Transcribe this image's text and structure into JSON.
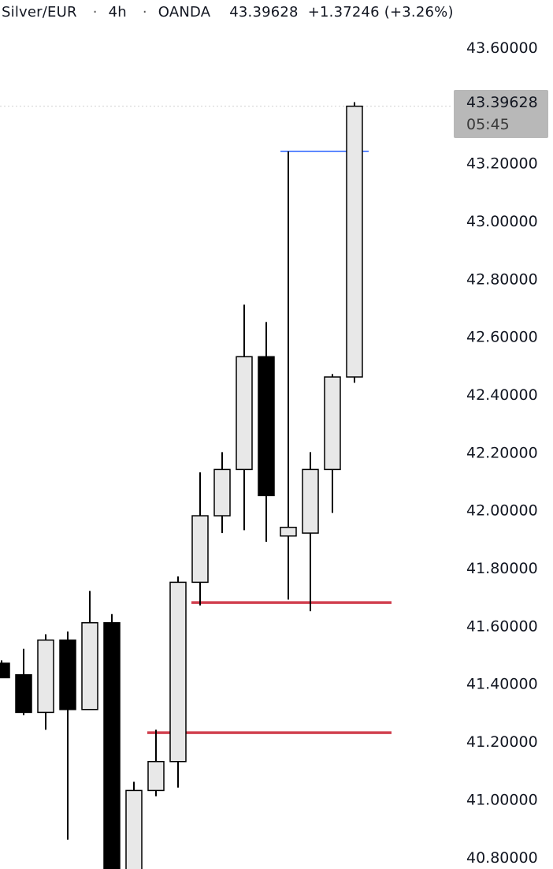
{
  "header": {
    "symbol": "Silver/EUR",
    "interval": "4h",
    "source": "OANDA",
    "last": "43.39628",
    "change": "+1.37246 (+3.26%)"
  },
  "last_tag": {
    "price": "43.39628",
    "countdown": "05:45"
  },
  "colors": {
    "up_fill": "#e8e8e8",
    "down_fill": "#000000",
    "outline": "#000000",
    "red_line": "#d1404f",
    "blue_line": "#2962ff",
    "tag_bg": "#b8b8b8"
  },
  "chart_data": {
    "type": "candlestick",
    "y_axis": {
      "side": "right",
      "ylim": [
        40.75,
        43.65
      ],
      "ticks": [
        "43.60000",
        "43.20000",
        "43.00000",
        "42.80000",
        "42.60000",
        "42.40000",
        "42.20000",
        "42.00000",
        "41.80000",
        "41.60000",
        "41.40000",
        "41.20000",
        "41.00000",
        "40.80000"
      ],
      "tick_values": [
        43.6,
        43.2,
        43.0,
        42.8,
        42.6,
        42.4,
        42.2,
        42.0,
        41.8,
        41.6,
        41.4,
        41.2,
        41.0,
        40.8
      ]
    },
    "candles": [
      {
        "open": 41.47,
        "high": 41.48,
        "low": 41.42,
        "close": 41.42
      },
      {
        "open": 41.43,
        "high": 41.52,
        "low": 41.29,
        "close": 41.3
      },
      {
        "open": 41.3,
        "high": 41.57,
        "low": 41.24,
        "close": 41.55
      },
      {
        "open": 41.55,
        "high": 41.58,
        "low": 40.86,
        "close": 41.31
      },
      {
        "open": 41.31,
        "high": 41.72,
        "low": 41.31,
        "close": 41.61
      },
      {
        "open": 41.61,
        "high": 41.64,
        "low": 40.73,
        "close": 40.74
      },
      {
        "open": 40.74,
        "high": 41.06,
        "low": 40.73,
        "close": 41.03
      },
      {
        "open": 41.03,
        "high": 41.24,
        "low": 41.01,
        "close": 41.13
      },
      {
        "open": 41.13,
        "high": 41.77,
        "low": 41.04,
        "close": 41.75
      },
      {
        "open": 41.75,
        "high": 42.13,
        "low": 41.67,
        "close": 41.98
      },
      {
        "open": 41.98,
        "high": 42.2,
        "low": 41.92,
        "close": 42.14
      },
      {
        "open": 42.14,
        "high": 42.71,
        "low": 41.93,
        "close": 42.53
      },
      {
        "open": 42.53,
        "high": 42.65,
        "low": 41.89,
        "close": 42.05
      },
      {
        "open": 41.91,
        "high": 43.24,
        "low": 41.69,
        "close": 41.94
      },
      {
        "open": 41.92,
        "high": 42.2,
        "low": 41.65,
        "close": 42.14
      },
      {
        "open": 42.14,
        "high": 42.47,
        "low": 41.99,
        "close": 42.46
      },
      {
        "open": 42.46,
        "high": 43.41,
        "low": 42.44,
        "close": 43.39628
      }
    ],
    "horizontal_lines": [
      {
        "price": 41.68,
        "color": "red"
      },
      {
        "price": 41.23,
        "color": "red"
      },
      {
        "price": 43.24,
        "color": "blue"
      }
    ],
    "last_price_line": 43.39628
  }
}
